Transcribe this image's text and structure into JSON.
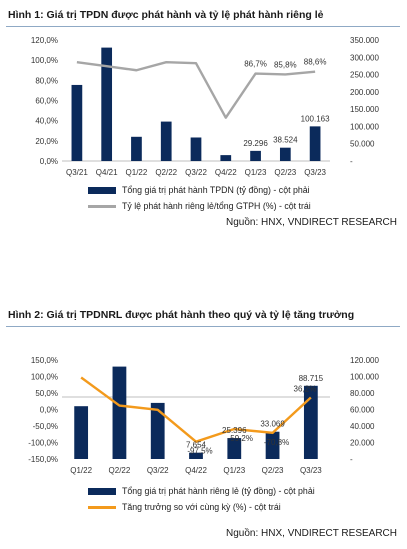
{
  "figures": [
    {
      "title": "Hình 1: Giá trị TPDN được phát hành và tỷ lệ phát hành riêng lẻ",
      "source": "Nguồn: HNX, VNDIRECT RESEARCH",
      "legend": {
        "bars": "Tổng giá trị phát hành TPDN (tỷ đồng) - cột phải",
        "line": "Tỷ lệ phát hành riêng lẻ/tổng GTPH (%) - cột trái"
      },
      "colors": {
        "bar": "#0b2a5b",
        "line": "#a6a6a6"
      }
    },
    {
      "title": "Hình 2: Giá trị TPDNRL được phát hành theo quý và tỷ lệ tăng trưởng",
      "source": "Nguồn: HNX, VNDIRECT RESEARCH",
      "legend": {
        "bars": "Tổng giá trị phát hành riêng lẻ (tỷ đồng) - cột phải",
        "line": "Tăng trưởng so với cùng kỳ (%) - cột trái"
      },
      "colors": {
        "bar": "#0b2a5b",
        "line": "#f39a1c"
      }
    }
  ],
  "chart_data": [
    {
      "type": "bar",
      "categories": [
        "Q3/21",
        "Q4/21",
        "Q1/22",
        "Q2/22",
        "Q3/22",
        "Q4/22",
        "Q1/23",
        "Q2/23",
        "Q3/23"
      ],
      "series": [
        {
          "name": "Tổng giá trị phát hành TPDN (tỷ đồng) - cột phải",
          "type": "bar",
          "axis": "right",
          "values": [
            220000,
            328000,
            70000,
            114000,
            68000,
            17000,
            29296,
            38524,
            100163
          ]
        },
        {
          "name": "Tỷ lệ phát hành riêng lẻ/tổng GTPH (%) - cột trái",
          "type": "line",
          "axis": "left",
          "values": [
            98.0,
            94.0,
            90.0,
            98.0,
            97.0,
            43.0,
            86.7,
            85.8,
            88.6
          ]
        }
      ],
      "data_labels": [
        {
          "index": 6,
          "bar": "29.296",
          "line": "86,7%"
        },
        {
          "index": 7,
          "bar": "38.524",
          "line": "85,8%"
        },
        {
          "index": 8,
          "bar": "100.163",
          "line": "88,6%"
        }
      ],
      "y_left": {
        "min": 0,
        "max": 120,
        "step": 20,
        "ticks": [
          "0,0%",
          "20,0%",
          "40,0%",
          "60,0%",
          "80,0%",
          "100,0%",
          "120,0%"
        ]
      },
      "y_right": {
        "min": 0,
        "max": 350000,
        "step": 50000,
        "ticks": [
          "-",
          "50.000",
          "100.000",
          "150.000",
          "200.000",
          "250.000",
          "300.000",
          "350.000"
        ]
      },
      "grid": false,
      "legend_position": "bottom"
    },
    {
      "type": "bar",
      "categories": [
        "Q1/22",
        "Q2/22",
        "Q3/22",
        "Q4/22",
        "Q1/23",
        "Q2/23",
        "Q3/23"
      ],
      "series": [
        {
          "name": "Tổng giá trị phát hành riêng lẻ (tỷ đồng) - cột phải",
          "type": "bar",
          "axis": "right",
          "values": [
            64000,
            112000,
            68000,
            7654,
            25396,
            33069,
            88715
          ]
        },
        {
          "name": "Tăng trưởng so với cùng kỳ (%) - cột trái",
          "type": "line",
          "axis": "left",
          "values": [
            97.0,
            12.0,
            -1.0,
            -97.5,
            -59.2,
            -70.8,
            36.2
          ]
        }
      ],
      "data_labels": [
        {
          "index": 3,
          "bar": "7.654",
          "line": "-97,5%"
        },
        {
          "index": 4,
          "bar": "25.396",
          "line": "-59,2%"
        },
        {
          "index": 5,
          "bar": "33.069",
          "line": "-70,8%"
        },
        {
          "index": 6,
          "bar": "88.715",
          "line": "36,2%"
        }
      ],
      "y_left": {
        "min": -150,
        "max": 150,
        "step": 50,
        "ticks": [
          "-150,0%",
          "-100,0%",
          "-50,0%",
          "0,0%",
          "50,0%",
          "100,0%",
          "150,0%"
        ]
      },
      "y_right": {
        "min": 0,
        "max": 120000,
        "step": 20000,
        "ticks": [
          "-",
          "20.000",
          "40.000",
          "60.000",
          "80.000",
          "100.000",
          "120.000"
        ]
      },
      "grid": false,
      "legend_position": "bottom"
    }
  ]
}
